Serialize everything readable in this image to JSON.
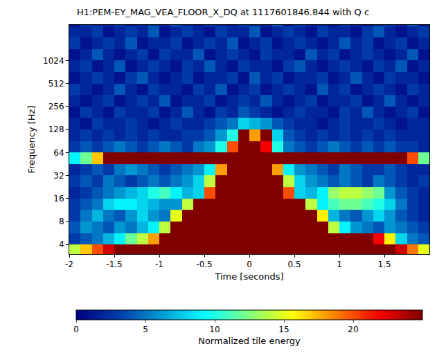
{
  "chart_data": {
    "type": "heatmap",
    "title": "H1:PEM-EY_MAG_VEA_FLOOR_X_DQ at 1117601846.844 with Q c",
    "x_label": "Time [seconds]",
    "y_label": "Frequency [Hz]",
    "colorbar_title": "Normalized tile energy",
    "log": "y",
    "grid": false,
    "xlim": [
      -2,
      2
    ],
    "xticks": [
      -2,
      -1.5,
      -1,
      -0.5,
      0,
      0.5,
      1,
      1.5
    ],
    "ylim": [
      3,
      3000
    ],
    "yticks": [
      4,
      8,
      16,
      32,
      64,
      128,
      256,
      512,
      1024
    ],
    "zlim": [
      0,
      25
    ],
    "zticks": [
      0,
      5,
      10,
      15,
      20
    ],
    "x": [
      -2,
      -1.875,
      -1.75,
      -1.625,
      -1.5,
      -1.375,
      -1.25,
      -1.125,
      -1,
      -0.875,
      -0.75,
      -0.625,
      -0.5,
      -0.375,
      -0.25,
      -0.125,
      0,
      0.125,
      0.25,
      0.375,
      0.5,
      0.625,
      0.75,
      0.875,
      1,
      1.125,
      1.25,
      1.375,
      1.5,
      1.625,
      1.75,
      1.875,
      2
    ],
    "y": [
      2.83,
      4,
      5.66,
      8,
      11.31,
      16,
      22.63,
      32,
      45.25,
      64,
      90.51,
      128,
      181.02,
      256,
      362.04,
      512,
      724.08,
      1024,
      1448.15,
      2048,
      2896.31,
      4096
    ],
    "z": [
      [
        14,
        17,
        20,
        23,
        25,
        25,
        25,
        25,
        25,
        25,
        25,
        25,
        25,
        25,
        25,
        25,
        25,
        25,
        25,
        25,
        25,
        25,
        25,
        25,
        25,
        25,
        25,
        25,
        25,
        23,
        19,
        15
      ],
      [
        3,
        4,
        5,
        7,
        9,
        12,
        14,
        18,
        25,
        25,
        25,
        25,
        25,
        25,
        25,
        25,
        25,
        25,
        25,
        25,
        25,
        25,
        25,
        25,
        25,
        25,
        25,
        22,
        16,
        8,
        5,
        4
      ],
      [
        4,
        6,
        5,
        4,
        6,
        5,
        7,
        9,
        14,
        25,
        25,
        25,
        25,
        25,
        25,
        25,
        25,
        25,
        25,
        25,
        25,
        25,
        25,
        14,
        9,
        6,
        5,
        4,
        6,
        5,
        4,
        3
      ],
      [
        3,
        5,
        7,
        5,
        4,
        6,
        8,
        6,
        5,
        15,
        25,
        25,
        25,
        25,
        25,
        25,
        25,
        25,
        25,
        25,
        25,
        25,
        16,
        7,
        5,
        4,
        6,
        8,
        6,
        4,
        3,
        2
      ],
      [
        3,
        4,
        5,
        8,
        9,
        9,
        8,
        7,
        6,
        6,
        14,
        25,
        25,
        25,
        25,
        25,
        25,
        25,
        25,
        25,
        25,
        14,
        9,
        11,
        12,
        12,
        11,
        10,
        8,
        5,
        3,
        2
      ],
      [
        2,
        3,
        4,
        5,
        6,
        7,
        8,
        10,
        11,
        9,
        7,
        8,
        20,
        25,
        25,
        25,
        25,
        25,
        25,
        20,
        8,
        7,
        9,
        13,
        14,
        14,
        13,
        12,
        6,
        4,
        3,
        2
      ],
      [
        3,
        4,
        3,
        5,
        4,
        3,
        4,
        5,
        4,
        5,
        6,
        8,
        14,
        25,
        25,
        25,
        25,
        25,
        25,
        14,
        8,
        6,
        5,
        4,
        5,
        4,
        3,
        5,
        4,
        3,
        2,
        3
      ],
      [
        2,
        3,
        4,
        3,
        5,
        6,
        5,
        4,
        3,
        4,
        5,
        6,
        9,
        18,
        25,
        25,
        25,
        25,
        18,
        9,
        6,
        5,
        4,
        3,
        5,
        4,
        3,
        3,
        4,
        3,
        2,
        2
      ],
      [
        9,
        12,
        17,
        25,
        25,
        25,
        25,
        25,
        25,
        25,
        25,
        25,
        25,
        25,
        25,
        25,
        25,
        25,
        25,
        25,
        25,
        25,
        25,
        25,
        25,
        25,
        25,
        25,
        25,
        25,
        20,
        12
      ],
      [
        3,
        4,
        3,
        4,
        5,
        4,
        3,
        4,
        5,
        4,
        3,
        5,
        6,
        10,
        20,
        25,
        25,
        22,
        10,
        5,
        4,
        3,
        4,
        5,
        4,
        3,
        4,
        3,
        4,
        3,
        3,
        2
      ],
      [
        2,
        3,
        2,
        3,
        2,
        3,
        2,
        3,
        2,
        2,
        3,
        3,
        4,
        6,
        10,
        25,
        18,
        25,
        8,
        4,
        3,
        2,
        3,
        2,
        3,
        2,
        3,
        2,
        3,
        2,
        2,
        2
      ],
      [
        2,
        1,
        3,
        2,
        2,
        3,
        2,
        1,
        2,
        3,
        2,
        2,
        3,
        4,
        5,
        8,
        7,
        6,
        4,
        3,
        2,
        2,
        1,
        2,
        3,
        2,
        2,
        3,
        2,
        1,
        2,
        2
      ],
      [
        1,
        3,
        2,
        1,
        3,
        2,
        2,
        3,
        1,
        2,
        4,
        2,
        1,
        3,
        2,
        4,
        3,
        2,
        1,
        2,
        3,
        2,
        2,
        1,
        3,
        2,
        4,
        2,
        1,
        2,
        3,
        1
      ],
      [
        2,
        1,
        2,
        3,
        1,
        2,
        3,
        2,
        4,
        1,
        2,
        2,
        3,
        1,
        2,
        3,
        2,
        4,
        2,
        1,
        2,
        3,
        1,
        2,
        2,
        3,
        1,
        2,
        4,
        2,
        1,
        2
      ],
      [
        3,
        2,
        1,
        2,
        4,
        2,
        1,
        3,
        2,
        2,
        1,
        3,
        2,
        4,
        1,
        2,
        3,
        1,
        2,
        3,
        2,
        1,
        4,
        2,
        3,
        1,
        2,
        3,
        2,
        1,
        3,
        2
      ],
      [
        1,
        2,
        3,
        2,
        1,
        3,
        4,
        2,
        1,
        2,
        3,
        1,
        2,
        2,
        3,
        1,
        4,
        2,
        3,
        1,
        2,
        2,
        3,
        1,
        2,
        4,
        2,
        1,
        3,
        2,
        2,
        1
      ],
      [
        2,
        3,
        1,
        2,
        4,
        1,
        2,
        3,
        2,
        1,
        3,
        2,
        4,
        2,
        1,
        3,
        2,
        2,
        1,
        3,
        4,
        2,
        1,
        2,
        3,
        2,
        1,
        3,
        2,
        4,
        1,
        2
      ],
      [
        1,
        2,
        4,
        2,
        1,
        2,
        3,
        1,
        3,
        2,
        2,
        4,
        1,
        2,
        3,
        2,
        1,
        3,
        2,
        2,
        1,
        4,
        2,
        3,
        1,
        2,
        3,
        2,
        1,
        2,
        4,
        1
      ],
      [
        3,
        1,
        2,
        3,
        2,
        4,
        1,
        2,
        2,
        3,
        1,
        2,
        3,
        2,
        4,
        1,
        2,
        3,
        1,
        2,
        3,
        2,
        1,
        2,
        4,
        2,
        3,
        1,
        2,
        3,
        1,
        2
      ],
      [
        2,
        2,
        3,
        1,
        2,
        3,
        2,
        4,
        1,
        2,
        3,
        2,
        1,
        3,
        2,
        2,
        4,
        1,
        2,
        3,
        2,
        1,
        3,
        2,
        2,
        1,
        3,
        4,
        2,
        1,
        2,
        3
      ],
      [
        1,
        3,
        2,
        2,
        3,
        1,
        2,
        3,
        2,
        4,
        2,
        1,
        3,
        2,
        1,
        3,
        2,
        2,
        4,
        1,
        3,
        2,
        2,
        1,
        3,
        2,
        1,
        2,
        3,
        2,
        4,
        1
      ]
    ]
  }
}
